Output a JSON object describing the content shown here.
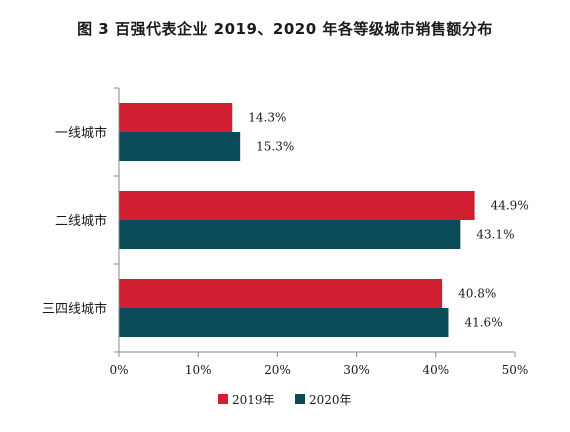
{
  "title": "图 3  百强代表企业 2019、2020 年各等级城市销售额分布",
  "chart_data": {
    "type": "bar",
    "orientation": "horizontal",
    "categories": [
      "一线城市",
      "二线城市",
      "三四线城市"
    ],
    "series": [
      {
        "name": "2019年",
        "values": [
          14.3,
          44.9,
          40.8
        ],
        "labels": [
          "14.3%",
          "44.9%",
          "40.8%"
        ],
        "color": "#d01f30"
      },
      {
        "name": "2020年",
        "values": [
          15.3,
          43.1,
          41.6
        ],
        "labels": [
          "15.3%",
          "43.1%",
          "41.6%"
        ],
        "color": "#0b4a57"
      }
    ],
    "xlim": [
      0,
      50
    ],
    "xticks": [
      0,
      10,
      20,
      30,
      40,
      50
    ],
    "xtick_labels": [
      "0%",
      "10%",
      "20%",
      "30%",
      "40%",
      "50%"
    ],
    "grid": false,
    "legend_position": "bottom"
  }
}
